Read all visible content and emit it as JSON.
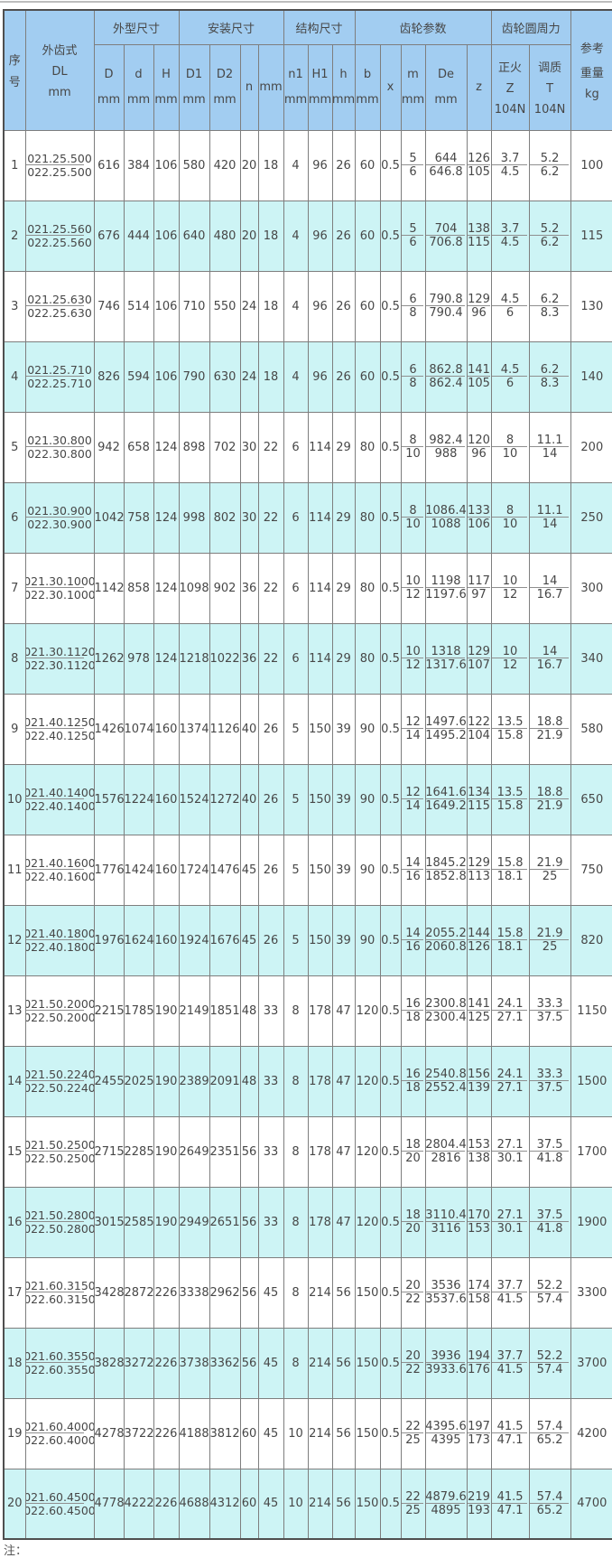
{
  "page": {
    "note": "注："
  },
  "colors": {
    "header_bg": "#a2cdf1",
    "band_cyan": "#cdf4f5",
    "band_white": "#ffffff",
    "grid": "#7e7e7e",
    "text": "#474747"
  },
  "table": {
    "header": {
      "seq": "序号",
      "model": [
        "外齿式",
        "DL",
        "mm"
      ],
      "groups": [
        {
          "label": "外型尺寸",
          "span": 3
        },
        {
          "label": "安装尺寸",
          "span": 4
        },
        {
          "label": "结构尺寸",
          "span": 3
        },
        {
          "label": "齿轮参数",
          "span": 5
        },
        {
          "label": "齿轮圆周力",
          "span": 2
        }
      ],
      "subcols": [
        [
          "D",
          "mm"
        ],
        [
          "d",
          "mm"
        ],
        [
          "H",
          "mm"
        ],
        [
          "D1",
          "mm"
        ],
        [
          "D2",
          "mm"
        ],
        [
          "n"
        ],
        [
          "mm"
        ],
        [
          "n1",
          "mm"
        ],
        [
          "H1",
          "mm"
        ],
        [
          "h",
          "mm"
        ],
        [
          "b",
          "mm"
        ],
        [
          "x"
        ],
        [
          "m",
          "mm"
        ],
        [
          "De",
          "mm"
        ],
        [
          "z"
        ],
        [
          "正火",
          "Z",
          "104N"
        ],
        [
          "调质",
          "T",
          "104N"
        ]
      ],
      "weight": [
        "参考",
        "重量",
        "kg"
      ]
    },
    "rows": [
      {
        "no": "1",
        "models": [
          "021.25.500",
          "022.25.500"
        ],
        "dims": [
          "616",
          "384",
          "106",
          "580",
          "420",
          "20",
          "18",
          "4",
          "96",
          "26",
          "60",
          "0.5"
        ],
        "gear": [
          [
            "5",
            "644",
            "126",
            "3.7",
            "5.2"
          ],
          [
            "6",
            "646.8",
            "105",
            "4.5",
            "6.2"
          ]
        ],
        "weight": "100"
      },
      {
        "no": "2",
        "models": [
          "021.25.560",
          "022.25.560"
        ],
        "dims": [
          "676",
          "444",
          "106",
          "640",
          "480",
          "20",
          "18",
          "4",
          "96",
          "26",
          "60",
          "0.5"
        ],
        "gear": [
          [
            "5",
            "704",
            "138",
            "3.7",
            "5.2"
          ],
          [
            "6",
            "706.8",
            "115",
            "4.5",
            "6.2"
          ]
        ],
        "weight": "115"
      },
      {
        "no": "3",
        "models": [
          "021.25.630",
          "022.25.630"
        ],
        "dims": [
          "746",
          "514",
          "106",
          "710",
          "550",
          "24",
          "18",
          "4",
          "96",
          "26",
          "60",
          "0.5"
        ],
        "gear": [
          [
            "6",
            "790.8",
            "129",
            "4.5",
            "6.2"
          ],
          [
            "8",
            "790.4",
            "96",
            "6",
            "8.3"
          ]
        ],
        "weight": "130"
      },
      {
        "no": "4",
        "models": [
          "021.25.710",
          "022.25.710"
        ],
        "dims": [
          "826",
          "594",
          "106",
          "790",
          "630",
          "24",
          "18",
          "4",
          "96",
          "26",
          "60",
          "0.5"
        ],
        "gear": [
          [
            "6",
            "862.8",
            "141",
            "4.5",
            "6.2"
          ],
          [
            "8",
            "862.4",
            "105",
            "6",
            "8.3"
          ]
        ],
        "weight": "140"
      },
      {
        "no": "5",
        "models": [
          "021.30.800",
          "022.30.800"
        ],
        "dims": [
          "942",
          "658",
          "124",
          "898",
          "702",
          "30",
          "22",
          "6",
          "114",
          "29",
          "80",
          "0.5"
        ],
        "gear": [
          [
            "8",
            "982.4",
            "120",
            "8",
            "11.1"
          ],
          [
            "10",
            "988",
            "96",
            "10",
            "14"
          ]
        ],
        "weight": "200"
      },
      {
        "no": "6",
        "models": [
          "021.30.900",
          "022.30.900"
        ],
        "dims": [
          "1042",
          "758",
          "124",
          "998",
          "802",
          "30",
          "22",
          "6",
          "114",
          "29",
          "80",
          "0.5"
        ],
        "gear": [
          [
            "8",
            "1086.4",
            "133",
            "8",
            "11.1"
          ],
          [
            "10",
            "1088",
            "106",
            "10",
            "14"
          ]
        ],
        "weight": "250"
      },
      {
        "no": "7",
        "models": [
          "021.30.1000",
          "022.30.1000"
        ],
        "dims": [
          "1142",
          "858",
          "124",
          "1098",
          "902",
          "36",
          "22",
          "6",
          "114",
          "29",
          "80",
          "0.5"
        ],
        "gear": [
          [
            "10",
            "1198",
            "117",
            "10",
            "14"
          ],
          [
            "12",
            "1197.6",
            "97",
            "12",
            "16.7"
          ]
        ],
        "weight": "300"
      },
      {
        "no": "8",
        "models": [
          "021.30.1120",
          "022.30.1120"
        ],
        "dims": [
          "1262",
          "978",
          "124",
          "1218",
          "1022",
          "36",
          "22",
          "6",
          "114",
          "29",
          "80",
          "0.5"
        ],
        "gear": [
          [
            "10",
            "1318",
            "129",
            "10",
            "14"
          ],
          [
            "12",
            "1317.6",
            "107",
            "12",
            "16.7"
          ]
        ],
        "weight": "340"
      },
      {
        "no": "9",
        "models": [
          "021.40.1250",
          "022.40.1250"
        ],
        "dims": [
          "1426",
          "1074",
          "160",
          "1374",
          "1126",
          "40",
          "26",
          "5",
          "150",
          "39",
          "90",
          "0.5"
        ],
        "gear": [
          [
            "12",
            "1497.6",
            "122",
            "13.5",
            "18.8"
          ],
          [
            "14",
            "1495.2",
            "104",
            "15.8",
            "21.9"
          ]
        ],
        "weight": "580"
      },
      {
        "no": "10",
        "models": [
          "021.40.1400",
          "022.40.1400"
        ],
        "dims": [
          "1576",
          "1224",
          "160",
          "1524",
          "1272",
          "40",
          "26",
          "5",
          "150",
          "39",
          "90",
          "0.5"
        ],
        "gear": [
          [
            "12",
            "1641.6",
            "134",
            "13.5",
            "18.8"
          ],
          [
            "14",
            "1649.2",
            "115",
            "15.8",
            "21.9"
          ]
        ],
        "weight": "650"
      },
      {
        "no": "11",
        "models": [
          "021.40.1600",
          "022.40.1600"
        ],
        "dims": [
          "1776",
          "1424",
          "160",
          "1724",
          "1476",
          "45",
          "26",
          "5",
          "150",
          "39",
          "90",
          "0.5"
        ],
        "gear": [
          [
            "14",
            "1845.2",
            "129",
            "15.8",
            "21.9"
          ],
          [
            "16",
            "1852.8",
            "113",
            "18.1",
            "25"
          ]
        ],
        "weight": "750"
      },
      {
        "no": "12",
        "models": [
          "021.40.1800",
          "022.40.1800"
        ],
        "dims": [
          "1976",
          "1624",
          "160",
          "1924",
          "1676",
          "45",
          "26",
          "5",
          "150",
          "39",
          "90",
          "0.5"
        ],
        "gear": [
          [
            "14",
            "2055.2",
            "144",
            "15.8",
            "21.9"
          ],
          [
            "16",
            "2060.8",
            "126",
            "18.1",
            "25"
          ]
        ],
        "weight": "820"
      },
      {
        "no": "13",
        "models": [
          "021.50.2000",
          "022.50.2000"
        ],
        "dims": [
          "2215",
          "1785",
          "190",
          "2149",
          "1851",
          "48",
          "33",
          "8",
          "178",
          "47",
          "120",
          "0.5"
        ],
        "gear": [
          [
            "16",
            "2300.8",
            "141",
            "24.1",
            "33.3"
          ],
          [
            "18",
            "2300.4",
            "125",
            "27.1",
            "37.5"
          ]
        ],
        "weight": "1150"
      },
      {
        "no": "14",
        "models": [
          "021.50.2240",
          "022.50.2240"
        ],
        "dims": [
          "2455",
          "2025",
          "190",
          "2389",
          "2091",
          "48",
          "33",
          "8",
          "178",
          "47",
          "120",
          "0.5"
        ],
        "gear": [
          [
            "16",
            "2540.8",
            "156",
            "24.1",
            "33.3"
          ],
          [
            "18",
            "2552.4",
            "139",
            "27.1",
            "37.5"
          ]
        ],
        "weight": "1500"
      },
      {
        "no": "15",
        "models": [
          "021.50.2500",
          "022.50.2500"
        ],
        "dims": [
          "2715",
          "2285",
          "190",
          "2649",
          "2351",
          "56",
          "33",
          "8",
          "178",
          "47",
          "120",
          "0.5"
        ],
        "gear": [
          [
            "18",
            "2804.4",
            "153",
            "27.1",
            "37.5"
          ],
          [
            "20",
            "2816",
            "138",
            "30.1",
            "41.8"
          ]
        ],
        "weight": "1700"
      },
      {
        "no": "16",
        "models": [
          "021.50.2800",
          "022.50.2800"
        ],
        "dims": [
          "3015",
          "2585",
          "190",
          "2949",
          "2651",
          "56",
          "33",
          "8",
          "178",
          "47",
          "120",
          "0.5"
        ],
        "gear": [
          [
            "18",
            "3110.4",
            "170",
            "27.1",
            "37.5"
          ],
          [
            "20",
            "3116",
            "153",
            "30.1",
            "41.8"
          ]
        ],
        "weight": "1900"
      },
      {
        "no": "17",
        "models": [
          "021.60.3150",
          "022.60.3150"
        ],
        "dims": [
          "3428",
          "2872",
          "226",
          "3338",
          "2962",
          "56",
          "45",
          "8",
          "214",
          "56",
          "150",
          "0.5"
        ],
        "gear": [
          [
            "20",
            "3536",
            "174",
            "37.7",
            "52.2"
          ],
          [
            "22",
            "3537.6",
            "158",
            "41.5",
            "57.4"
          ]
        ],
        "weight": "3300"
      },
      {
        "no": "18",
        "models": [
          "021.60.3550",
          "022.60.3550"
        ],
        "dims": [
          "3828",
          "3272",
          "226",
          "3738",
          "3362",
          "56",
          "45",
          "8",
          "214",
          "56",
          "150",
          "0.5"
        ],
        "gear": [
          [
            "20",
            "3936",
            "194",
            "37.7",
            "52.2"
          ],
          [
            "22",
            "3933.6",
            "176",
            "41.5",
            "57.4"
          ]
        ],
        "weight": "3700"
      },
      {
        "no": "19",
        "models": [
          "021.60.4000",
          "022.60.4000"
        ],
        "dims": [
          "4278",
          "3722",
          "226",
          "4188",
          "3812",
          "60",
          "45",
          "10",
          "214",
          "56",
          "150",
          "0.5"
        ],
        "gear": [
          [
            "22",
            "4395.6",
            "197",
            "41.5",
            "57.4"
          ],
          [
            "25",
            "4395",
            "173",
            "47.1",
            "65.2"
          ]
        ],
        "weight": "4200"
      },
      {
        "no": "20",
        "models": [
          "021.60.4500",
          "022.60.4500"
        ],
        "dims": [
          "4778",
          "4222",
          "226",
          "4688",
          "4312",
          "60",
          "45",
          "10",
          "214",
          "56",
          "150",
          "0.5"
        ],
        "gear": [
          [
            "22",
            "4879.6",
            "219",
            "41.5",
            "57.4"
          ],
          [
            "25",
            "4895",
            "193",
            "47.1",
            "65.2"
          ]
        ],
        "weight": "4700"
      }
    ]
  }
}
